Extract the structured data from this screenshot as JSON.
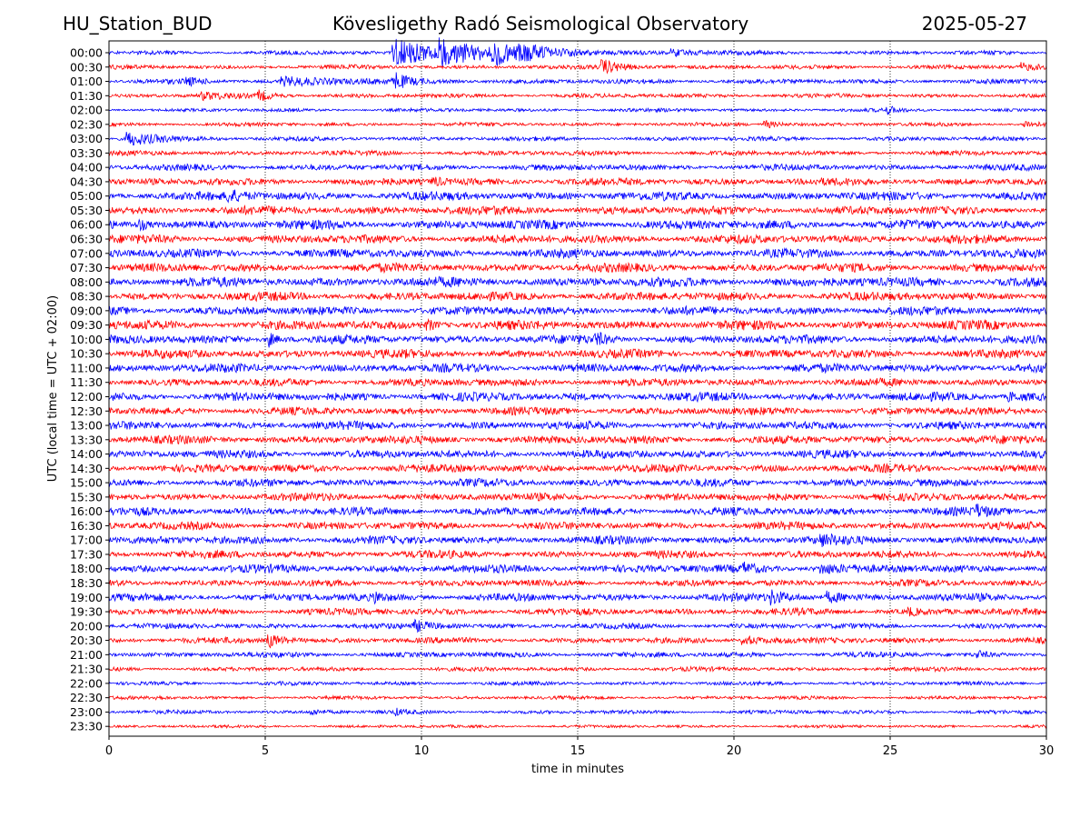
{
  "header": {
    "station": "HU_Station_BUD",
    "observatory": "Kövesligethy Radó Seismological Observatory",
    "date": "2025-05-27"
  },
  "chart_data": {
    "type": "line",
    "title": "Kövesligethy Radó Seismological Observatory",
    "xlabel": "time in minutes",
    "ylabel": "UTC (local time = UTC + 02:00)",
    "xlim": [
      0,
      30
    ],
    "xticks": [
      0,
      5,
      10,
      15,
      20,
      25,
      30
    ],
    "grid": "vertical dotted at x ticks",
    "series_colors": [
      "#0000ff",
      "#ff0000"
    ],
    "color_rule": "alternating rows: full hour blue, half hour red",
    "rows": [
      {
        "label": "00:00",
        "color": "#0000ff",
        "noise": 0.22,
        "events": [
          {
            "t": 9.1,
            "amp": 1.6,
            "dur": 3.2
          },
          {
            "t": 10.6,
            "amp": 1.2,
            "dur": 3.5
          },
          {
            "t": 12.3,
            "amp": 0.9,
            "dur": 4
          },
          {
            "t": 18.0,
            "amp": 0.35,
            "dur": 2
          }
        ]
      },
      {
        "label": "00:30",
        "color": "#ff0000",
        "noise": 0.22,
        "events": [
          {
            "t": 15.8,
            "amp": 0.8,
            "dur": 1.5
          },
          {
            "t": 29.2,
            "amp": 0.4,
            "dur": 1
          }
        ]
      },
      {
        "label": "01:00",
        "color": "#0000ff",
        "noise": 0.25,
        "events": [
          {
            "t": 2.5,
            "amp": 0.4,
            "dur": 0.8
          },
          {
            "t": 5.5,
            "amp": 0.45,
            "dur": 5
          },
          {
            "t": 9.2,
            "amp": 0.9,
            "dur": 0.6
          }
        ]
      },
      {
        "label": "01:30",
        "color": "#ff0000",
        "noise": 0.22,
        "events": [
          {
            "t": 3.0,
            "amp": 0.4,
            "dur": 1.5
          },
          {
            "t": 4.8,
            "amp": 0.55,
            "dur": 1
          }
        ]
      },
      {
        "label": "02:00",
        "color": "#0000ff",
        "noise": 0.18,
        "events": [
          {
            "t": 24.9,
            "amp": 0.4,
            "dur": 0.6
          }
        ]
      },
      {
        "label": "02:30",
        "color": "#ff0000",
        "noise": 0.2,
        "events": [
          {
            "t": 21.0,
            "amp": 0.45,
            "dur": 1
          },
          {
            "t": 29.3,
            "amp": 0.45,
            "dur": 1
          }
        ]
      },
      {
        "label": "03:00",
        "color": "#0000ff",
        "noise": 0.22,
        "events": [
          {
            "t": 0.6,
            "amp": 0.8,
            "dur": 2.4
          }
        ]
      },
      {
        "label": "03:30",
        "color": "#ff0000",
        "noise": 0.25,
        "events": []
      },
      {
        "label": "04:00",
        "color": "#0000ff",
        "noise": 0.32,
        "events": []
      },
      {
        "label": "04:30",
        "color": "#ff0000",
        "noise": 0.38,
        "events": [
          {
            "t": 10.4,
            "amp": 0.5,
            "dur": 0.5
          }
        ]
      },
      {
        "label": "05:00",
        "color": "#0000ff",
        "noise": 0.45,
        "events": [
          {
            "t": 3.8,
            "amp": 0.6,
            "dur": 1
          }
        ]
      },
      {
        "label": "05:30",
        "color": "#ff0000",
        "noise": 0.45,
        "events": []
      },
      {
        "label": "06:00",
        "color": "#0000ff",
        "noise": 0.48,
        "events": [
          {
            "t": 1.0,
            "amp": 0.6,
            "dur": 0.4
          }
        ]
      },
      {
        "label": "06:30",
        "color": "#ff0000",
        "noise": 0.45,
        "events": []
      },
      {
        "label": "07:00",
        "color": "#0000ff",
        "noise": 0.45,
        "events": []
      },
      {
        "label": "07:30",
        "color": "#ff0000",
        "noise": 0.45,
        "events": []
      },
      {
        "label": "08:00",
        "color": "#0000ff",
        "noise": 0.5,
        "events": []
      },
      {
        "label": "08:30",
        "color": "#ff0000",
        "noise": 0.45,
        "events": []
      },
      {
        "label": "09:00",
        "color": "#0000ff",
        "noise": 0.45,
        "events": []
      },
      {
        "label": "09:30",
        "color": "#ff0000",
        "noise": 0.48,
        "events": [
          {
            "t": 10.2,
            "amp": 0.6,
            "dur": 0.6
          }
        ]
      },
      {
        "label": "10:00",
        "color": "#0000ff",
        "noise": 0.45,
        "events": [
          {
            "t": 5.1,
            "amp": 0.9,
            "dur": 0.5
          },
          {
            "t": 15.6,
            "amp": 0.7,
            "dur": 0.5
          }
        ]
      },
      {
        "label": "10:30",
        "color": "#ff0000",
        "noise": 0.45,
        "events": []
      },
      {
        "label": "11:00",
        "color": "#0000ff",
        "noise": 0.45,
        "events": []
      },
      {
        "label": "11:30",
        "color": "#ff0000",
        "noise": 0.4,
        "events": []
      },
      {
        "label": "12:00",
        "color": "#0000ff",
        "noise": 0.45,
        "events": [
          {
            "t": 28.8,
            "amp": 0.5,
            "dur": 1.2
          }
        ]
      },
      {
        "label": "12:30",
        "color": "#ff0000",
        "noise": 0.4,
        "events": []
      },
      {
        "label": "13:00",
        "color": "#0000ff",
        "noise": 0.42,
        "events": []
      },
      {
        "label": "13:30",
        "color": "#ff0000",
        "noise": 0.42,
        "events": []
      },
      {
        "label": "14:00",
        "color": "#0000ff",
        "noise": 0.42,
        "events": []
      },
      {
        "label": "14:30",
        "color": "#ff0000",
        "noise": 0.42,
        "events": []
      },
      {
        "label": "15:00",
        "color": "#0000ff",
        "noise": 0.4,
        "events": []
      },
      {
        "label": "15:30",
        "color": "#ff0000",
        "noise": 0.4,
        "events": []
      },
      {
        "label": "16:00",
        "color": "#0000ff",
        "noise": 0.42,
        "events": [
          {
            "t": 27.8,
            "amp": 0.5,
            "dur": 0.8
          }
        ]
      },
      {
        "label": "16:30",
        "color": "#ff0000",
        "noise": 0.4,
        "events": []
      },
      {
        "label": "17:00",
        "color": "#0000ff",
        "noise": 0.42,
        "events": [
          {
            "t": 22.8,
            "amp": 0.5,
            "dur": 1
          }
        ]
      },
      {
        "label": "17:30",
        "color": "#ff0000",
        "noise": 0.4,
        "events": []
      },
      {
        "label": "18:00",
        "color": "#0000ff",
        "noise": 0.42,
        "events": [
          {
            "t": 20.3,
            "amp": 0.5,
            "dur": 1.2
          },
          {
            "t": 22.8,
            "amp": 0.5,
            "dur": 1
          }
        ]
      },
      {
        "label": "18:30",
        "color": "#ff0000",
        "noise": 0.35,
        "events": []
      },
      {
        "label": "19:00",
        "color": "#0000ff",
        "noise": 0.4,
        "events": [
          {
            "t": 8.5,
            "amp": 0.6,
            "dur": 0.4
          },
          {
            "t": 21.2,
            "amp": 0.7,
            "dur": 1
          },
          {
            "t": 23.0,
            "amp": 0.55,
            "dur": 1
          }
        ]
      },
      {
        "label": "19:30",
        "color": "#ff0000",
        "noise": 0.35,
        "events": [
          {
            "t": 25.6,
            "amp": 0.4,
            "dur": 0.6
          }
        ]
      },
      {
        "label": "20:00",
        "color": "#0000ff",
        "noise": 0.28,
        "events": [
          {
            "t": 9.8,
            "amp": 0.5,
            "dur": 1.5
          }
        ]
      },
      {
        "label": "20:30",
        "color": "#ff0000",
        "noise": 0.3,
        "events": [
          {
            "t": 5.1,
            "amp": 0.8,
            "dur": 1
          },
          {
            "t": 20.3,
            "amp": 0.55,
            "dur": 1.5
          }
        ]
      },
      {
        "label": "21:00",
        "color": "#0000ff",
        "noise": 0.28,
        "events": [
          {
            "t": 27.8,
            "amp": 0.4,
            "dur": 0.6
          }
        ]
      },
      {
        "label": "21:30",
        "color": "#ff0000",
        "noise": 0.22,
        "events": []
      },
      {
        "label": "22:00",
        "color": "#0000ff",
        "noise": 0.2,
        "events": []
      },
      {
        "label": "22:30",
        "color": "#ff0000",
        "noise": 0.18,
        "events": [
          {
            "t": 1.5,
            "amp": 0.3,
            "dur": 0.5
          }
        ]
      },
      {
        "label": "23:00",
        "color": "#0000ff",
        "noise": 0.2,
        "events": [
          {
            "t": 6.5,
            "amp": 0.3,
            "dur": 1
          },
          {
            "t": 9.2,
            "amp": 0.3,
            "dur": 0.5
          }
        ]
      },
      {
        "label": "23:30",
        "color": "#ff0000",
        "noise": 0.15,
        "events": []
      }
    ]
  }
}
